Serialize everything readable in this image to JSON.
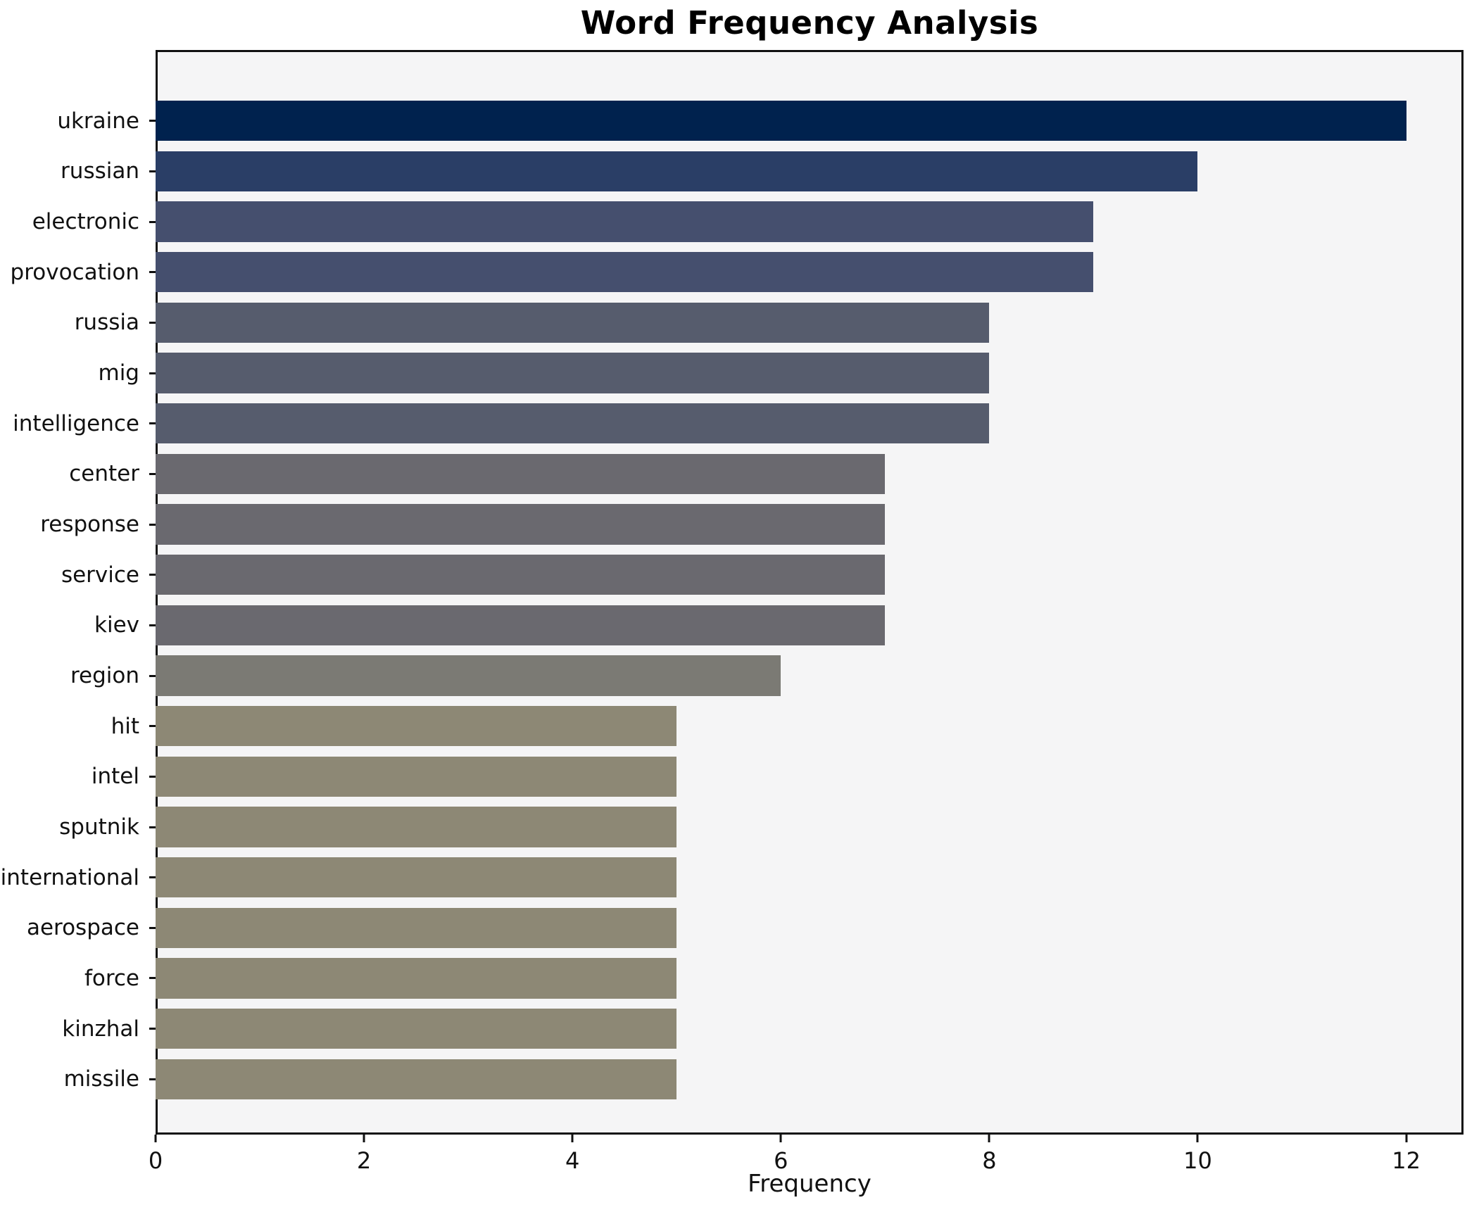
{
  "title": "Word Frequency Analysis",
  "chart_data": {
    "type": "bar",
    "orientation": "horizontal",
    "title": "Word Frequency Analysis",
    "xlabel": "Frequency",
    "ylabel": "",
    "categories": [
      "ukraine",
      "russian",
      "electronic",
      "provocation",
      "russia",
      "mig",
      "intelligence",
      "center",
      "response",
      "service",
      "kiev",
      "region",
      "hit",
      "intel",
      "sputnik",
      "international",
      "aerospace",
      "force",
      "kinzhal",
      "missile"
    ],
    "values": [
      12,
      10,
      9,
      9,
      8,
      8,
      8,
      7,
      7,
      7,
      7,
      6,
      5,
      5,
      5,
      5,
      5,
      5,
      5,
      5
    ],
    "bar_colors": [
      "#00224e",
      "#2a3e66",
      "#454f6e",
      "#454f6e",
      "#565c6d",
      "#565c6d",
      "#565c6d",
      "#6a696f",
      "#6a696f",
      "#6a696f",
      "#6a696f",
      "#7b7a74",
      "#8d8875",
      "#8d8875",
      "#8d8875",
      "#8d8875",
      "#8d8875",
      "#8d8875",
      "#8d8875",
      "#8d8875"
    ],
    "xticks": [
      0,
      2,
      4,
      6,
      8,
      10,
      12
    ],
    "xlim": [
      0,
      12.55
    ],
    "grid": false,
    "legend": false,
    "plot_background": "#f5f5f6",
    "figure_background": "#ffffff",
    "spine_color": "#111111"
  }
}
